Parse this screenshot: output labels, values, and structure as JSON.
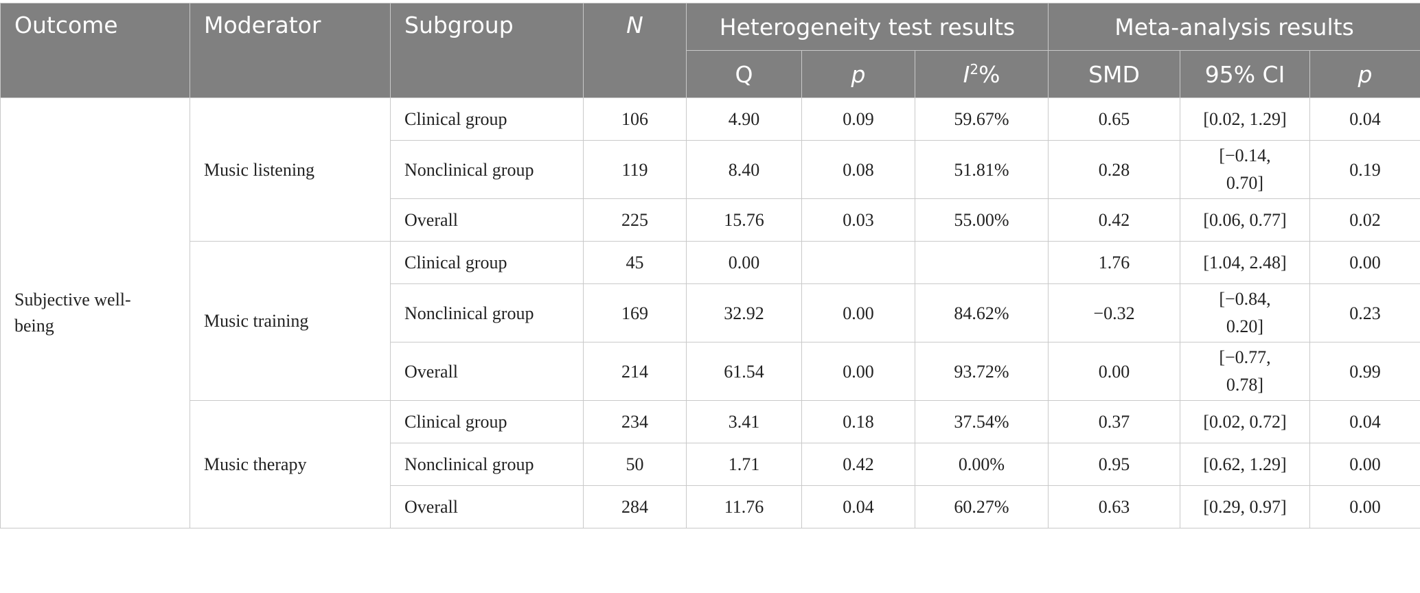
{
  "headers": {
    "outcome": "Outcome",
    "moderator": "Moderator",
    "subgroup": "Subgroup",
    "n": "N",
    "heterogeneity": "Heterogeneity test results",
    "meta": "Meta-analysis results",
    "q": "Q",
    "p1": "p",
    "i2_letter": "I",
    "i2_sup": "2",
    "i2_pct": "%",
    "smd": "SMD",
    "ci": "95% CI",
    "p2": "p"
  },
  "outcome": "Subjective well-being",
  "groups": [
    {
      "moderator": "Music listening",
      "rows": [
        {
          "subgroup": "Clinical group",
          "n": "106",
          "q": "4.90",
          "p": "0.09",
          "i2": "59.67%",
          "smd": "0.65",
          "ci": "[0.02, 1.29]",
          "p2": "0.04"
        },
        {
          "subgroup": "Nonclinical group",
          "n": "119",
          "q": "8.40",
          "p": "0.08",
          "i2": "51.81%",
          "smd": "0.28",
          "ci": "[−0.14, 0.70]",
          "p2": "0.19"
        },
        {
          "subgroup": "Overall",
          "n": "225",
          "q": "15.76",
          "p": "0.03",
          "i2": "55.00%",
          "smd": "0.42",
          "ci": "[0.06, 0.77]",
          "p2": "0.02"
        }
      ]
    },
    {
      "moderator": "Music training",
      "rows": [
        {
          "subgroup": "Clinical group",
          "n": "45",
          "q": "0.00",
          "p": "",
          "i2": "",
          "smd": "1.76",
          "ci": "[1.04, 2.48]",
          "p2": "0.00"
        },
        {
          "subgroup": "Nonclinical group",
          "n": "169",
          "q": "32.92",
          "p": "0.00",
          "i2": "84.62%",
          "smd": "−0.32",
          "ci": "[−0.84, 0.20]",
          "p2": "0.23"
        },
        {
          "subgroup": "Overall",
          "n": "214",
          "q": "61.54",
          "p": "0.00",
          "i2": "93.72%",
          "smd": "0.00",
          "ci": "[−0.77, 0.78]",
          "p2": "0.99"
        }
      ]
    },
    {
      "moderator": "Music therapy",
      "rows": [
        {
          "subgroup": "Clinical group",
          "n": "234",
          "q": "3.41",
          "p": "0.18",
          "i2": "37.54%",
          "smd": "0.37",
          "ci": "[0.02, 0.72]",
          "p2": "0.04"
        },
        {
          "subgroup": "Nonclinical group",
          "n": "50",
          "q": "1.71",
          "p": "0.42",
          "i2": "0.00%",
          "smd": "0.95",
          "ci": "[0.62, 1.29]",
          "p2": "0.00"
        },
        {
          "subgroup": "Overall",
          "n": "284",
          "q": "11.76",
          "p": "0.04",
          "i2": "60.27%",
          "smd": "0.63",
          "ci": "[0.29, 0.97]",
          "p2": "0.00"
        }
      ]
    }
  ]
}
